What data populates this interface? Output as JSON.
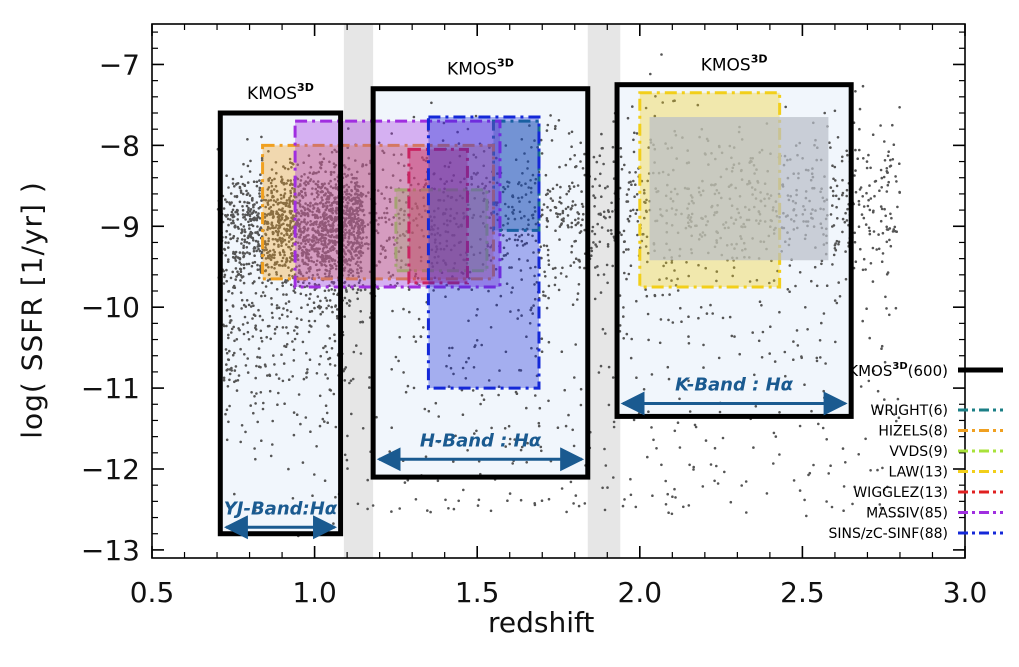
{
  "chart_data": {
    "type": "scatter",
    "xlabel": "redshift",
    "ylabel": "log( SSFR [1/yr] )",
    "xlim": [
      0.5,
      3.0
    ],
    "ylim": [
      -13.1,
      -6.5
    ],
    "xticks": [
      0.5,
      1.0,
      1.5,
      2.0,
      2.5,
      3.0
    ],
    "xtick_labels": [
      "0.5",
      "1.0",
      "1.5",
      "2.0",
      "2.5",
      "3.0"
    ],
    "yticks": [
      -13,
      -12,
      -11,
      -10,
      -9,
      -8,
      -7
    ],
    "ytick_labels": [
      "−13",
      "−12",
      "−11",
      "−10",
      "−9",
      "−8",
      "−7"
    ],
    "gaps": [
      {
        "x": [
          1.09,
          1.18
        ]
      },
      {
        "x": [
          1.84,
          1.94
        ]
      }
    ],
    "kmos_boxes": [
      {
        "x": [
          0.71,
          1.08
        ],
        "y": [
          -12.8,
          -7.6
        ],
        "label": "KMOS",
        "sup": "3D",
        "band": "YJ-Band:Hα",
        "arrow_y": -12.72
      },
      {
        "x": [
          1.18,
          1.84
        ],
        "y": [
          -12.1,
          -7.3
        ],
        "label": "KMOS",
        "sup": "3D",
        "band": "H-Band : Hα",
        "arrow_y": -11.88
      },
      {
        "x": [
          1.93,
          2.65
        ],
        "y": [
          -11.35,
          -7.25
        ],
        "label": "KMOS",
        "sup": "3D",
        "band": "K-Band : Hα",
        "arrow_y": -11.19
      }
    ],
    "surveys": [
      {
        "name": "WRIGHT(6)",
        "color": "#1b7f86",
        "x": [
          1.55,
          1.69
        ],
        "y": [
          -9.05,
          -7.7
        ]
      },
      {
        "name": "HIZELS(8)",
        "color": "#f0a020",
        "x": [
          0.84,
          1.55
        ],
        "y": [
          -9.65,
          -8.0
        ]
      },
      {
        "name": "VVDS(9)",
        "color": "#a8e23a",
        "x": [
          1.25,
          1.53
        ],
        "y": [
          -9.55,
          -8.55
        ]
      },
      {
        "name": "LAW(13)",
        "color": "#f2cf1a",
        "x": [
          2.0,
          2.43
        ],
        "y": [
          -9.75,
          -7.35
        ]
      },
      {
        "name": "WIGGLEZ(13)",
        "color": "#e02020",
        "x": [
          1.29,
          1.47
        ],
        "y": [
          -9.7,
          -8.05
        ]
      },
      {
        "name": "MASSIV(85)",
        "color": "#a02ee0",
        "x": [
          0.94,
          1.57
        ],
        "y": [
          -9.75,
          -7.7
        ]
      },
      {
        "name": "SINS/zC-SINF(88)",
        "color": "#1428d8",
        "x": [
          1.35,
          1.69
        ],
        "y": [
          -11.0,
          -7.65
        ]
      }
    ],
    "overlay_regions": [
      {
        "x": [
          2.03,
          2.58
        ],
        "y": [
          -9.42,
          -7.65
        ],
        "color": "#b8bec8"
      }
    ],
    "legend": {
      "placement": "bottom-right",
      "kmos_entry": {
        "label": "KMOS",
        "sup": "3D",
        "count": "(600)"
      }
    },
    "scatter_note": "grey points: galaxy sample density concentrated near log SSFR ≈ -9 at z 0.7–1.1"
  }
}
